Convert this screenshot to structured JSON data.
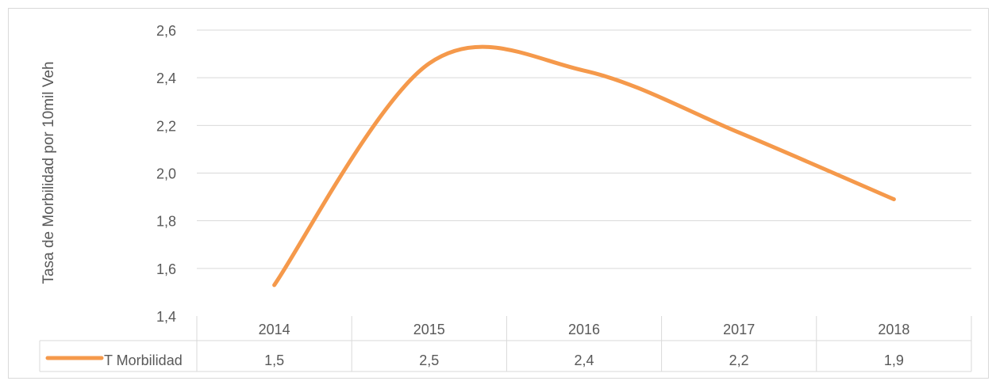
{
  "chart_data": {
    "type": "line",
    "title": "",
    "xlabel": "",
    "ylabel": "Tasa de Morbilidad por 10mil Veh",
    "categories": [
      "2014",
      "2015",
      "2016",
      "2017",
      "2018"
    ],
    "series": [
      {
        "name": "T Morbilidad",
        "values": [
          1.53,
          2.46,
          2.43,
          2.17,
          1.89
        ],
        "table_labels": [
          "1,5",
          "2,5",
          "2,4",
          "2,2",
          "1,9"
        ],
        "color": "#f5994b"
      }
    ],
    "ylim": [
      1.4,
      2.6
    ],
    "yticks": [
      1.4,
      1.6,
      1.8,
      2.0,
      2.2,
      2.4,
      2.6
    ],
    "ytick_labels": [
      "1,4",
      "1,6",
      "1,8",
      "2,0",
      "2,2",
      "2,4",
      "2,6"
    ],
    "grid": true,
    "smoothed": true,
    "data_table": true,
    "legend": "data-table"
  }
}
